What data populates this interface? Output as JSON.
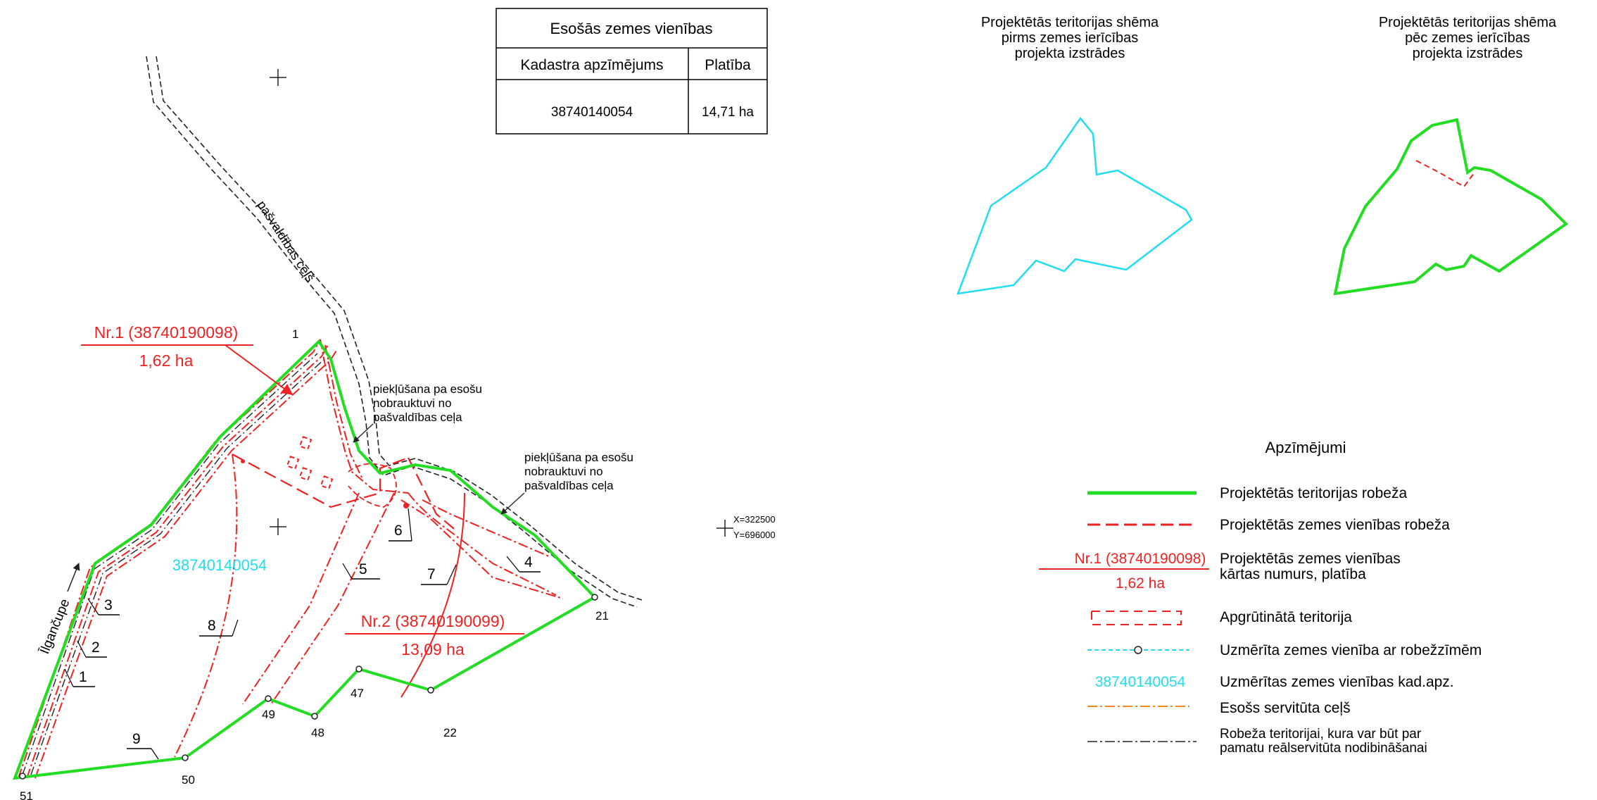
{
  "table": {
    "title": "Esošās zemes vienības",
    "col_cadastre": "Kadastra apzīmējums",
    "col_area": "Platība",
    "row_cadastre": "38740140054",
    "row_area": "14,71 ha"
  },
  "map": {
    "road_label": "pašvaldības ceļš",
    "river_label": "Īlgančupe",
    "unit1_label": "Nr.1 (38740190098)",
    "unit1_area": "1,62 ha",
    "unit2_label": "Nr.2 (38740190099)",
    "unit2_area": "13,09 ha",
    "existing_cadastre": "38740140054",
    "access_note_1": [
      "piekļūšana pa esošu",
      "nobrauktuvi no",
      "pašvaldības ceļa"
    ],
    "access_note_2": [
      "piekļūšana pa esošu",
      "nobrauktuvi no",
      "pašvaldības ceļa"
    ],
    "coord_x": "X=322500",
    "coord_y": "Y=696000",
    "servitude_numbers": [
      "1",
      "2",
      "3",
      "4",
      "5",
      "6",
      "7",
      "8",
      "9"
    ],
    "points": [
      "1",
      "21",
      "22",
      "47",
      "48",
      "49",
      "50",
      "51"
    ]
  },
  "schemes": {
    "before_title": [
      "Projektētās teritorijas shēma",
      "pirms zemes ierīcības",
      "projekta izstrādes"
    ],
    "after_title": [
      "Projektētās teritorijas shēma",
      "pēc zemes ierīcības",
      "projekta izstrādes"
    ]
  },
  "legend": {
    "title": "Apzīmējumi",
    "items": [
      {
        "label": "Projektētās teritorijas robeža"
      },
      {
        "label": "Projektētās zemes vienības robeža"
      },
      {
        "label_lines": [
          "Projektētās zemes vienības",
          "kārtas numurs, platība"
        ],
        "sample_top": "Nr.1 (38740190098)",
        "sample_bottom": "1,62 ha"
      },
      {
        "label": "Apgrūtinātā teritorija"
      },
      {
        "label": "Uzmērīta zemes vienība ar robežzīmēm"
      },
      {
        "label": "Uzmērītas zemes vienības kad.apz.",
        "sample": "38740140054"
      },
      {
        "label": "Esošs servitūta ceļš"
      },
      {
        "label_lines": [
          "Robeža teritorijai, kura var būt par",
          "pamatu reālservitūta nodibināšanai"
        ]
      }
    ]
  },
  "colors": {
    "green": "#22dd22",
    "red": "#ee2222",
    "cyan": "#22ddee",
    "orange": "#ee8822",
    "black": "#222222"
  }
}
